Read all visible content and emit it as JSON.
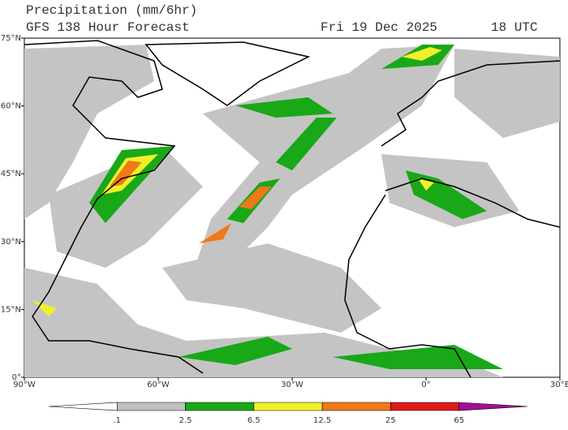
{
  "header": {
    "title": "Precipitation (mm/6hr)",
    "model": "GFS 138 Hour Forecast",
    "date": "Fri 19 Dec 2025",
    "time": "18 UTC"
  },
  "map": {
    "lon_range": [
      -90,
      30
    ],
    "lat_range": [
      0,
      75
    ],
    "lat_ticks": [
      {
        "value": 75,
        "label": "75°N"
      },
      {
        "value": 60,
        "label": "60°N"
      },
      {
        "value": 45,
        "label": "45°N"
      },
      {
        "value": 30,
        "label": "30°N"
      },
      {
        "value": 15,
        "label": "15°N"
      },
      {
        "value": 0,
        "label": "0°"
      }
    ],
    "lon_ticks": [
      {
        "value": -90,
        "label": "90°W"
      },
      {
        "value": -60,
        "label": "60°W"
      },
      {
        "value": -30,
        "label": "30°W"
      },
      {
        "value": 0,
        "label": "0°"
      },
      {
        "value": 30,
        "label": "30°E"
      }
    ]
  },
  "colorbar": {
    "levels": [
      {
        "value": 0.1,
        "label": ".1"
      },
      2.5,
      6.5,
      12.5,
      25,
      65
    ],
    "colors": [
      "#ffffff",
      "#c0c0c0",
      "#18a818",
      "#f0f028",
      "#f07818",
      "#e01818",
      "#a01098"
    ]
  }
}
